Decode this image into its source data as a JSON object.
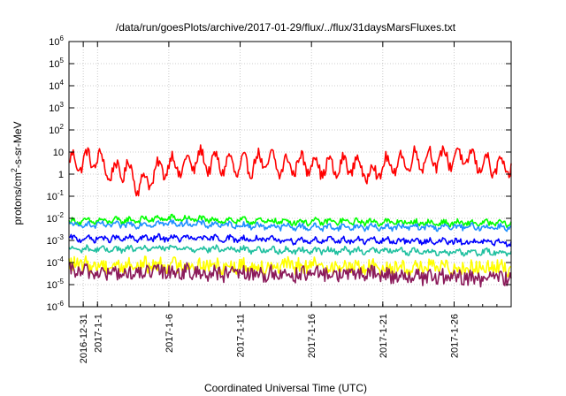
{
  "chart_data": {
    "type": "line",
    "title": "/data/run/goesPlots/archive/2017-01-29/flux/../flux/31daysMarsFluxes.txt",
    "xlabel": "Coordinated Universal Time (UTC)",
    "ylabel": {
      "base": "protons/cm",
      "sup": "2",
      "rest": "-s-sr-MeV"
    },
    "yscale": "log",
    "ylim_exp": [
      -6,
      6
    ],
    "xlim": [
      "2016-12-30",
      "2017-01-30"
    ],
    "grid": true,
    "y_ticks": [
      {
        "base": "10",
        "exp": "-6",
        "value_exp": -6
      },
      {
        "base": "10",
        "exp": "-5",
        "value_exp": -5
      },
      {
        "base": "10",
        "exp": "-4",
        "value_exp": -4
      },
      {
        "base": "10",
        "exp": "-3",
        "value_exp": -3
      },
      {
        "base": "10",
        "exp": "-2",
        "value_exp": -2
      },
      {
        "base": "10",
        "exp": "-1",
        "value_exp": -1
      },
      {
        "base": "1",
        "exp": "",
        "value_exp": 0
      },
      {
        "base": "10",
        "exp": "",
        "value_exp": 1
      },
      {
        "base": "10",
        "exp": "2",
        "value_exp": 2
      },
      {
        "base": "10",
        "exp": "3",
        "value_exp": 3
      },
      {
        "base": "10",
        "exp": "4",
        "value_exp": 4
      },
      {
        "base": "10",
        "exp": "5",
        "value_exp": 5
      },
      {
        "base": "10",
        "exp": "6",
        "value_exp": 6
      }
    ],
    "x_ticks": [
      {
        "label": "2016-12-31",
        "date": "2016-12-31"
      },
      {
        "label": "2017-1-1",
        "date": "2017-01-01"
      },
      {
        "label": "2017-1-6",
        "date": "2017-01-06"
      },
      {
        "label": "2017-1-11",
        "date": "2017-01-11"
      },
      {
        "label": "2017-1-16",
        "date": "2017-01-16"
      },
      {
        "label": "2017-1-21",
        "date": "2017-01-21"
      },
      {
        "label": "2017-1-26",
        "date": "2017-01-26"
      }
    ],
    "series": [
      {
        "color": "#ff0000",
        "dates": [
          "2016-12-30",
          "2017-01-01",
          "2017-01-02",
          "2017-01-03",
          "2017-01-04",
          "2017-01-05",
          "2017-01-06",
          "2017-01-07",
          "2017-01-08",
          "2017-01-09",
          "2017-01-10",
          "2017-01-11",
          "2017-01-12",
          "2017-01-13",
          "2017-01-14",
          "2017-01-15",
          "2017-01-16",
          "2017-01-17",
          "2017-01-18",
          "2017-01-19",
          "2017-01-20",
          "2017-01-21",
          "2017-01-22",
          "2017-01-23",
          "2017-01-24",
          "2017-01-25",
          "2017-01-26",
          "2017-01-27",
          "2017-01-28",
          "2017-01-29",
          "2017-01-30"
        ],
        "values": [
          3,
          5,
          1,
          2,
          0.3,
          1,
          3,
          2,
          5,
          3,
          3,
          2,
          3,
          4,
          2,
          3,
          3,
          2,
          2,
          3,
          1,
          2,
          3,
          4,
          5,
          5,
          6,
          5,
          3,
          2,
          2
        ]
      },
      {
        "color": "#00ff00",
        "dates": [
          "2016-12-30",
          "2017-01-03",
          "2017-01-06",
          "2017-01-10",
          "2017-01-15",
          "2017-01-20",
          "2017-01-25",
          "2017-01-30"
        ],
        "values": [
          0.007,
          0.008,
          0.01,
          0.008,
          0.007,
          0.007,
          0.006,
          0.006
        ]
      },
      {
        "color": "#1e90ff",
        "dates": [
          "2016-12-30",
          "2017-01-03",
          "2017-01-06",
          "2017-01-10",
          "2017-01-15",
          "2017-01-20",
          "2017-01-25",
          "2017-01-30"
        ],
        "values": [
          0.005,
          0.005,
          0.006,
          0.005,
          0.004,
          0.004,
          0.004,
          0.004
        ]
      },
      {
        "color": "#0000ff",
        "dates": [
          "2016-12-30",
          "2017-01-03",
          "2017-01-06",
          "2017-01-10",
          "2017-01-15",
          "2017-01-20",
          "2017-01-25",
          "2017-01-30"
        ],
        "values": [
          0.0012,
          0.0012,
          0.0013,
          0.0012,
          0.001,
          0.001,
          0.0009,
          0.0008
        ]
      },
      {
        "color": "#20c0a0",
        "dates": [
          "2016-12-30",
          "2017-01-03",
          "2017-01-06",
          "2017-01-10",
          "2017-01-15",
          "2017-01-20",
          "2017-01-25",
          "2017-01-30"
        ],
        "values": [
          0.0004,
          0.0004,
          0.00045,
          0.0004,
          0.00035,
          0.00035,
          0.0003,
          0.0003
        ]
      },
      {
        "color": "#ffff00",
        "dates": [
          "2016-12-30",
          "2017-01-03",
          "2017-01-06",
          "2017-01-10",
          "2017-01-15",
          "2017-01-20",
          "2017-01-25",
          "2017-01-30"
        ],
        "values": [
          8e-05,
          7e-05,
          8e-05,
          7e-05,
          7e-05,
          6e-05,
          6e-05,
          6e-05
        ]
      },
      {
        "color": "#8b1a5a",
        "dates": [
          "2016-12-30",
          "2017-01-03",
          "2017-01-06",
          "2017-01-10",
          "2017-01-15",
          "2017-01-20",
          "2017-01-25",
          "2017-01-30"
        ],
        "values": [
          4e-05,
          3e-05,
          4e-05,
          3e-05,
          3e-05,
          3e-05,
          2e-05,
          2e-05
        ]
      }
    ]
  }
}
